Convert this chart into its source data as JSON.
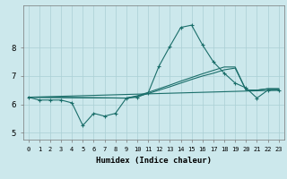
{
  "xlabel": "Humidex (Indice chaleur)",
  "bg_color": "#cce8ec",
  "grid_color": "#aacfd4",
  "line_color": "#1a6e6a",
  "xlim": [
    -0.5,
    23.5
  ],
  "ylim": [
    4.75,
    9.5
  ],
  "yticks": [
    5,
    6,
    7,
    8
  ],
  "x_ticks": [
    0,
    1,
    2,
    3,
    4,
    5,
    6,
    7,
    8,
    9,
    10,
    11,
    12,
    13,
    14,
    15,
    16,
    17,
    18,
    19,
    20,
    21,
    22,
    23
  ],
  "series1_x": [
    0,
    1,
    2,
    3,
    4,
    5,
    6,
    7,
    8,
    9,
    10,
    11,
    12,
    13,
    14,
    15,
    16,
    17,
    18,
    19,
    20,
    21,
    22,
    23
  ],
  "series1_y": [
    6.25,
    6.15,
    6.15,
    6.15,
    6.05,
    5.25,
    5.68,
    5.58,
    5.68,
    6.22,
    6.25,
    6.4,
    7.35,
    8.05,
    8.72,
    8.8,
    8.1,
    7.5,
    7.1,
    6.75,
    6.58,
    6.22,
    6.5,
    6.5
  ],
  "series2_x": [
    0,
    23
  ],
  "series2_y": [
    6.25,
    6.5
  ],
  "series3_x": [
    0,
    9,
    10,
    11,
    12,
    13,
    14,
    15,
    16,
    17,
    18,
    19,
    20,
    21,
    22,
    23
  ],
  "series3_y": [
    6.25,
    6.22,
    6.3,
    6.42,
    6.55,
    6.68,
    6.82,
    6.95,
    7.08,
    7.2,
    7.32,
    7.32,
    6.5,
    6.5,
    6.55,
    6.55
  ],
  "series4_x": [
    0,
    9,
    10,
    11,
    12,
    13,
    14,
    15,
    16,
    17,
    18,
    19,
    20,
    21,
    22,
    23
  ],
  "series4_y": [
    6.25,
    6.22,
    6.28,
    6.38,
    6.5,
    6.62,
    6.75,
    6.88,
    7.0,
    7.1,
    7.22,
    7.28,
    6.5,
    6.5,
    6.55,
    6.55
  ],
  "xlabel_fontsize": 6.5,
  "tick_fontsize_x": 5.0,
  "tick_fontsize_y": 6.5
}
